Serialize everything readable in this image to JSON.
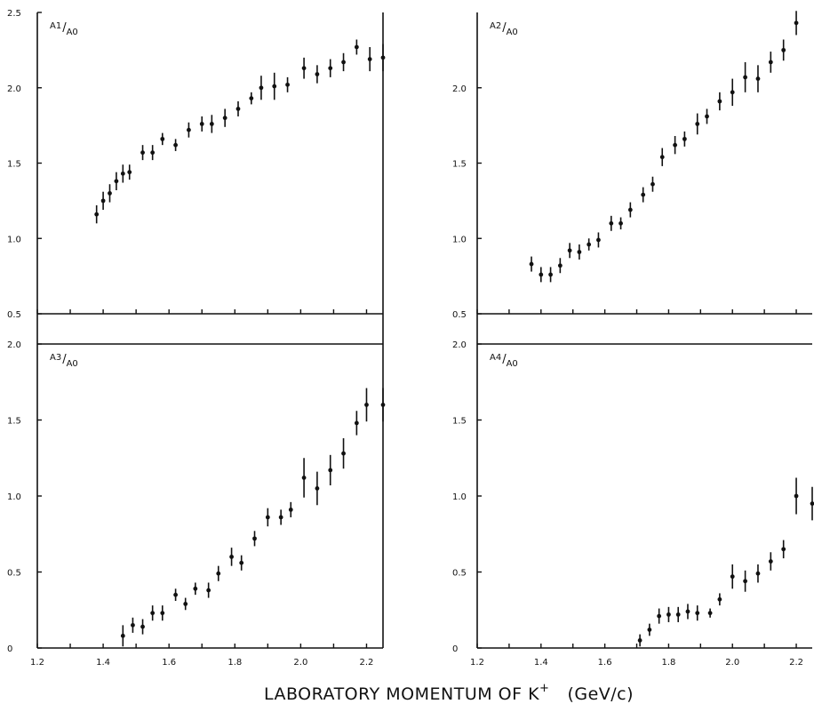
{
  "chart_data": [
    {
      "type": "scatter",
      "panel_label": "A1/A0",
      "label_num": "A1",
      "label_den": "A0",
      "ylim": [
        0.5,
        2.5
      ],
      "yticks": [
        "0.5",
        "1.0",
        "1.5",
        "2.0",
        "2.5"
      ],
      "xlim": [
        1.2,
        2.25
      ],
      "points": [
        {
          "x": 1.38,
          "y": 1.16,
          "err": 0.06
        },
        {
          "x": 1.4,
          "y": 1.25,
          "err": 0.06
        },
        {
          "x": 1.42,
          "y": 1.3,
          "err": 0.06
        },
        {
          "x": 1.44,
          "y": 1.38,
          "err": 0.06
        },
        {
          "x": 1.46,
          "y": 1.43,
          "err": 0.06
        },
        {
          "x": 1.48,
          "y": 1.44,
          "err": 0.05
        },
        {
          "x": 1.52,
          "y": 1.57,
          "err": 0.05
        },
        {
          "x": 1.55,
          "y": 1.57,
          "err": 0.05
        },
        {
          "x": 1.58,
          "y": 1.66,
          "err": 0.04
        },
        {
          "x": 1.62,
          "y": 1.62,
          "err": 0.04
        },
        {
          "x": 1.66,
          "y": 1.72,
          "err": 0.05
        },
        {
          "x": 1.7,
          "y": 1.76,
          "err": 0.05
        },
        {
          "x": 1.73,
          "y": 1.76,
          "err": 0.06
        },
        {
          "x": 1.77,
          "y": 1.8,
          "err": 0.06
        },
        {
          "x": 1.81,
          "y": 1.86,
          "err": 0.05
        },
        {
          "x": 1.85,
          "y": 1.93,
          "err": 0.04
        },
        {
          "x": 1.88,
          "y": 2.0,
          "err": 0.08
        },
        {
          "x": 1.92,
          "y": 2.01,
          "err": 0.09
        },
        {
          "x": 1.96,
          "y": 2.02,
          "err": 0.05
        },
        {
          "x": 2.01,
          "y": 2.13,
          "err": 0.07
        },
        {
          "x": 2.05,
          "y": 2.09,
          "err": 0.06
        },
        {
          "x": 2.09,
          "y": 2.13,
          "err": 0.06
        },
        {
          "x": 2.13,
          "y": 2.17,
          "err": 0.06
        },
        {
          "x": 2.17,
          "y": 2.27,
          "err": 0.05
        },
        {
          "x": 2.21,
          "y": 2.19,
          "err": 0.08
        },
        {
          "x": 2.25,
          "y": 2.2,
          "err": 0.09
        }
      ]
    },
    {
      "type": "scatter",
      "panel_label": "A2/A0",
      "label_num": "A2",
      "label_den": "A0",
      "ylim": [
        0.5,
        2.5
      ],
      "yticks": [
        "0.5",
        "1.0",
        "1.5",
        "2.0"
      ],
      "xlim": [
        1.2,
        2.25
      ],
      "points": [
        {
          "x": 1.37,
          "y": 0.83,
          "err": 0.05
        },
        {
          "x": 1.4,
          "y": 0.76,
          "err": 0.05
        },
        {
          "x": 1.43,
          "y": 0.76,
          "err": 0.05
        },
        {
          "x": 1.46,
          "y": 0.82,
          "err": 0.05
        },
        {
          "x": 1.49,
          "y": 0.92,
          "err": 0.05
        },
        {
          "x": 1.52,
          "y": 0.91,
          "err": 0.05
        },
        {
          "x": 1.55,
          "y": 0.96,
          "err": 0.04
        },
        {
          "x": 1.58,
          "y": 0.99,
          "err": 0.05
        },
        {
          "x": 1.62,
          "y": 1.1,
          "err": 0.05
        },
        {
          "x": 1.65,
          "y": 1.1,
          "err": 0.04
        },
        {
          "x": 1.68,
          "y": 1.19,
          "err": 0.05
        },
        {
          "x": 1.72,
          "y": 1.29,
          "err": 0.05
        },
        {
          "x": 1.75,
          "y": 1.36,
          "err": 0.05
        },
        {
          "x": 1.78,
          "y": 1.54,
          "err": 0.06
        },
        {
          "x": 1.82,
          "y": 1.62,
          "err": 0.06
        },
        {
          "x": 1.85,
          "y": 1.66,
          "err": 0.05
        },
        {
          "x": 1.89,
          "y": 1.76,
          "err": 0.07
        },
        {
          "x": 1.92,
          "y": 1.81,
          "err": 0.05
        },
        {
          "x": 1.96,
          "y": 1.91,
          "err": 0.06
        },
        {
          "x": 2.0,
          "y": 1.97,
          "err": 0.09
        },
        {
          "x": 2.04,
          "y": 2.07,
          "err": 0.1
        },
        {
          "x": 2.08,
          "y": 2.06,
          "err": 0.09
        },
        {
          "x": 2.12,
          "y": 2.17,
          "err": 0.07
        },
        {
          "x": 2.16,
          "y": 2.25,
          "err": 0.07
        },
        {
          "x": 2.2,
          "y": 2.43,
          "err": 0.08
        }
      ]
    },
    {
      "type": "scatter",
      "panel_label": "A3/A0",
      "label_num": "A3",
      "label_den": "A0",
      "ylim": [
        0,
        2.0
      ],
      "yticks": [
        "0",
        "0.5",
        "1.0",
        "1.5",
        "2.0"
      ],
      "xlim": [
        1.2,
        2.25
      ],
      "points": [
        {
          "x": 1.46,
          "y": 0.08,
          "err": 0.07
        },
        {
          "x": 1.49,
          "y": 0.15,
          "err": 0.05
        },
        {
          "x": 1.52,
          "y": 0.14,
          "err": 0.05
        },
        {
          "x": 1.55,
          "y": 0.23,
          "err": 0.05
        },
        {
          "x": 1.58,
          "y": 0.23,
          "err": 0.05
        },
        {
          "x": 1.62,
          "y": 0.35,
          "err": 0.04
        },
        {
          "x": 1.65,
          "y": 0.29,
          "err": 0.04
        },
        {
          "x": 1.68,
          "y": 0.39,
          "err": 0.04
        },
        {
          "x": 1.72,
          "y": 0.38,
          "err": 0.05
        },
        {
          "x": 1.75,
          "y": 0.49,
          "err": 0.05
        },
        {
          "x": 1.79,
          "y": 0.6,
          "err": 0.06
        },
        {
          "x": 1.82,
          "y": 0.56,
          "err": 0.05
        },
        {
          "x": 1.86,
          "y": 0.72,
          "err": 0.05
        },
        {
          "x": 1.9,
          "y": 0.86,
          "err": 0.06
        },
        {
          "x": 1.94,
          "y": 0.86,
          "err": 0.05
        },
        {
          "x": 1.97,
          "y": 0.91,
          "err": 0.05
        },
        {
          "x": 2.01,
          "y": 1.12,
          "err": 0.13
        },
        {
          "x": 2.05,
          "y": 1.05,
          "err": 0.11
        },
        {
          "x": 2.09,
          "y": 1.17,
          "err": 0.1
        },
        {
          "x": 2.13,
          "y": 1.28,
          "err": 0.1
        },
        {
          "x": 2.17,
          "y": 1.48,
          "err": 0.08
        },
        {
          "x": 2.2,
          "y": 1.6,
          "err": 0.11
        },
        {
          "x": 2.25,
          "y": 1.6,
          "err": 0.11
        }
      ]
    },
    {
      "type": "scatter",
      "panel_label": "A4/A0",
      "label_num": "A4",
      "label_den": "A0",
      "ylim": [
        0,
        2.0
      ],
      "yticks": [
        "0",
        "0.5",
        "1.0",
        "1.5",
        "2.0"
      ],
      "xlim": [
        1.2,
        2.25
      ],
      "points": [
        {
          "x": 1.71,
          "y": 0.05,
          "err": 0.04
        },
        {
          "x": 1.74,
          "y": 0.12,
          "err": 0.04
        },
        {
          "x": 1.77,
          "y": 0.21,
          "err": 0.05
        },
        {
          "x": 1.8,
          "y": 0.22,
          "err": 0.05
        },
        {
          "x": 1.83,
          "y": 0.22,
          "err": 0.05
        },
        {
          "x": 1.86,
          "y": 0.24,
          "err": 0.05
        },
        {
          "x": 1.89,
          "y": 0.23,
          "err": 0.05
        },
        {
          "x": 1.93,
          "y": 0.23,
          "err": 0.03
        },
        {
          "x": 1.96,
          "y": 0.32,
          "err": 0.04
        },
        {
          "x": 2.0,
          "y": 0.47,
          "err": 0.08
        },
        {
          "x": 2.04,
          "y": 0.44,
          "err": 0.07
        },
        {
          "x": 2.08,
          "y": 0.49,
          "err": 0.06
        },
        {
          "x": 2.12,
          "y": 0.57,
          "err": 0.06
        },
        {
          "x": 2.16,
          "y": 0.65,
          "err": 0.06
        },
        {
          "x": 2.2,
          "y": 1.0,
          "err": 0.12
        },
        {
          "x": 2.25,
          "y": 0.95,
          "err": 0.11
        }
      ]
    }
  ],
  "x_axis": {
    "range": [
      1.2,
      2.25
    ],
    "tick_values": [
      1.2,
      1.3,
      1.4,
      1.5,
      1.6,
      1.7,
      1.8,
      1.9,
      2.0,
      2.1,
      2.2
    ],
    "labels": [
      "1.2",
      "1.4",
      "1.6",
      "1.8",
      "2.0",
      "2.2"
    ],
    "label_values": [
      1.2,
      1.4,
      1.6,
      1.8,
      2.0,
      2.2
    ]
  },
  "xlabel_main": "LABORATORY MOMENTUM OF K",
  "xlabel_sup": "+",
  "xlabel_units": "(GeV/c)"
}
